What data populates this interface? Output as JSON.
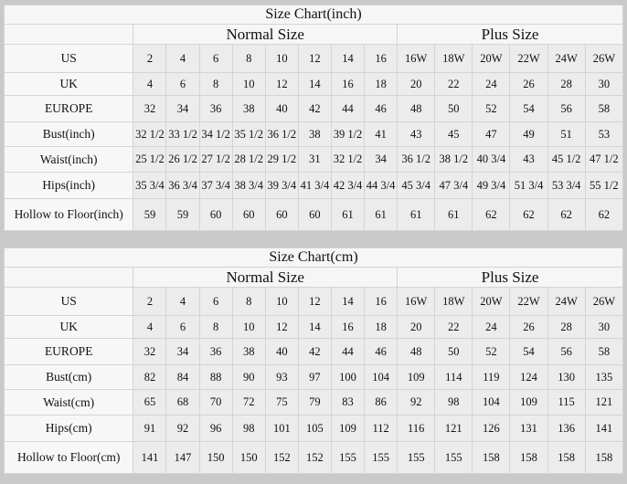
{
  "tables": [
    {
      "title": "Size Chart(inch)",
      "normal_label": "Normal Size",
      "plus_label": "Plus Size",
      "rows": [
        {
          "label": "US",
          "values": [
            "2",
            "4",
            "6",
            "8",
            "10",
            "12",
            "14",
            "16",
            "16W",
            "18W",
            "20W",
            "22W",
            "24W",
            "26W"
          ]
        },
        {
          "label": "UK",
          "values": [
            "4",
            "6",
            "8",
            "10",
            "12",
            "14",
            "16",
            "18",
            "20",
            "22",
            "24",
            "26",
            "28",
            "30"
          ]
        },
        {
          "label": "EUROPE",
          "values": [
            "32",
            "34",
            "36",
            "38",
            "40",
            "42",
            "44",
            "46",
            "48",
            "50",
            "52",
            "54",
            "56",
            "58"
          ]
        },
        {
          "label": "Bust(inch)",
          "values": [
            "32 1/2",
            "33 1/2",
            "34 1/2",
            "35 1/2",
            "36 1/2",
            "38",
            "39 1/2",
            "41",
            "43",
            "45",
            "47",
            "49",
            "51",
            "53"
          ]
        },
        {
          "label": "Waist(inch)",
          "values": [
            "25 1/2",
            "26 1/2",
            "27 1/2",
            "28 1/2",
            "29 1/2",
            "31",
            "32 1/2",
            "34",
            "36 1/2",
            "38 1/2",
            "40 3/4",
            "43",
            "45 1/2",
            "47 1/2"
          ]
        },
        {
          "label": "Hips(inch)",
          "values": [
            "35 3/4",
            "36 3/4",
            "37 3/4",
            "38 3/4",
            "39 3/4",
            "41 3/4",
            "42 3/4",
            "44 3/4",
            "45 3/4",
            "47 3/4",
            "49 3/4",
            "51 3/4",
            "53 3/4",
            "55 1/2"
          ]
        },
        {
          "label": "Hollow to Floor(inch)",
          "values": [
            "59",
            "59",
            "60",
            "60",
            "60",
            "60",
            "61",
            "61",
            "61",
            "61",
            "62",
            "62",
            "62",
            "62"
          ]
        }
      ]
    },
    {
      "title": "Size Chart(cm)",
      "normal_label": "Normal Size",
      "plus_label": "Plus Size",
      "rows": [
        {
          "label": "US",
          "values": [
            "2",
            "4",
            "6",
            "8",
            "10",
            "12",
            "14",
            "16",
            "16W",
            "18W",
            "20W",
            "22W",
            "24W",
            "26W"
          ]
        },
        {
          "label": "UK",
          "values": [
            "4",
            "6",
            "8",
            "10",
            "12",
            "14",
            "16",
            "18",
            "20",
            "22",
            "24",
            "26",
            "28",
            "30"
          ]
        },
        {
          "label": "EUROPE",
          "values": [
            "32",
            "34",
            "36",
            "38",
            "40",
            "42",
            "44",
            "46",
            "48",
            "50",
            "52",
            "54",
            "56",
            "58"
          ]
        },
        {
          "label": "Bust(cm)",
          "values": [
            "82",
            "84",
            "88",
            "90",
            "93",
            "97",
            "100",
            "104",
            "109",
            "114",
            "119",
            "124",
            "130",
            "135"
          ]
        },
        {
          "label": "Waist(cm)",
          "values": [
            "65",
            "68",
            "70",
            "72",
            "75",
            "79",
            "83",
            "86",
            "92",
            "98",
            "104",
            "109",
            "115",
            "121"
          ]
        },
        {
          "label": "Hips(cm)",
          "values": [
            "91",
            "92",
            "96",
            "98",
            "101",
            "105",
            "109",
            "112",
            "116",
            "121",
            "126",
            "131",
            "136",
            "141"
          ]
        },
        {
          "label": "Hollow to Floor(cm)",
          "values": [
            "141",
            "147",
            "150",
            "150",
            "152",
            "152",
            "155",
            "155",
            "155",
            "155",
            "158",
            "158",
            "158",
            "158"
          ]
        }
      ]
    }
  ]
}
